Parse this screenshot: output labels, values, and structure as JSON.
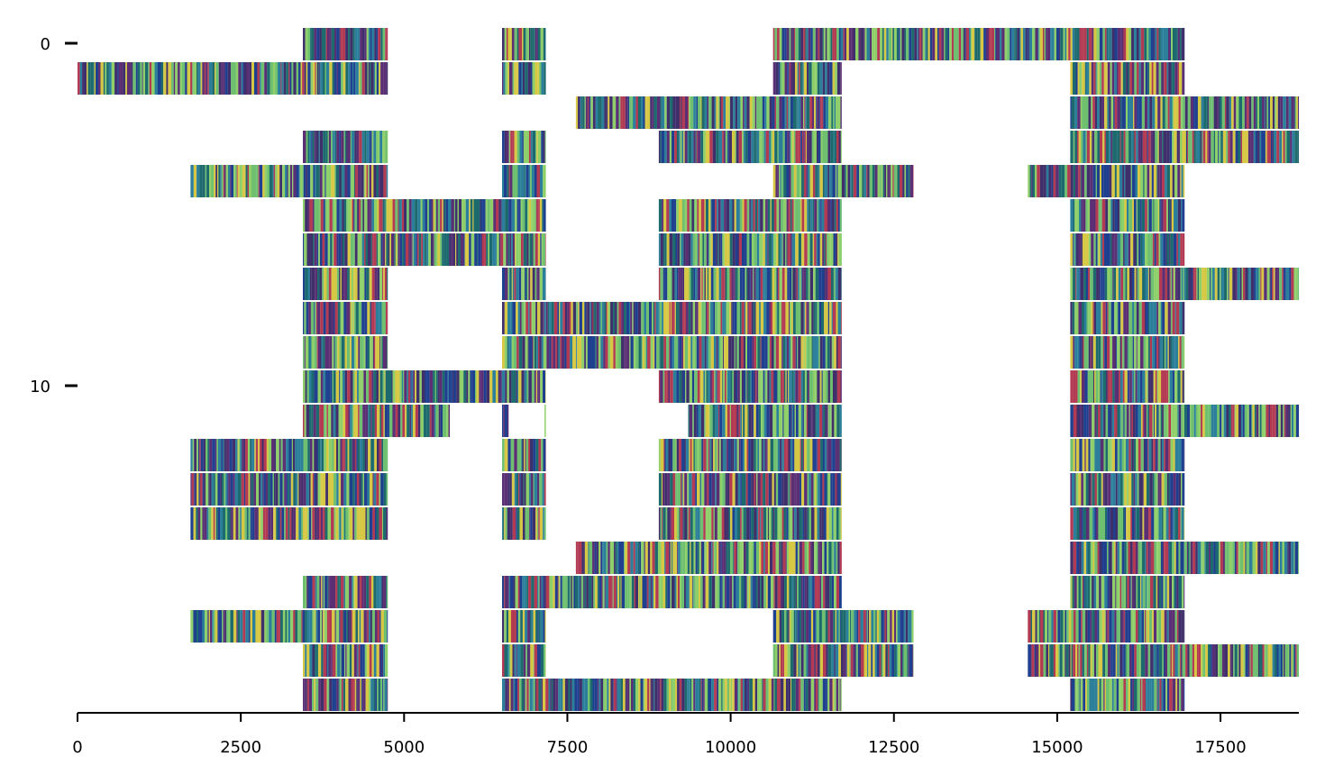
{
  "chart_data": {
    "type": "heatmap",
    "title": "",
    "xlabel": "",
    "ylabel": "",
    "xlim": [
      0,
      18700
    ],
    "ylim": [
      19.5,
      -0.5
    ],
    "x_ticks": [
      0,
      2500,
      5000,
      7500,
      10000,
      12500,
      15000,
      17500
    ],
    "x_tick_labels": [
      "0",
      "2500",
      "5000",
      "7500",
      "10000",
      "12500",
      "15000",
      "17500"
    ],
    "y_ticks": [
      0,
      10
    ],
    "y_tick_labels": [
      "0",
      "10"
    ],
    "grid": false,
    "legend": "none",
    "colors": [
      "#2c7f9a",
      "#1f3f8f",
      "#3f2f6a",
      "#5a2f74",
      "#b23a52",
      "#d6c844",
      "#6ebf6f",
      "#1d6a6e",
      "#8fcf6a"
    ],
    "rows": [
      {
        "index": 0,
        "segments": [
          [
            3450,
            4750
          ],
          [
            6500,
            7170
          ],
          [
            10650,
            16950
          ]
        ]
      },
      {
        "index": 1,
        "segments": [
          [
            0,
            4750
          ],
          [
            6500,
            7170
          ],
          [
            10650,
            11700
          ],
          [
            15200,
            16950
          ]
        ]
      },
      {
        "index": 2,
        "segments": [
          [
            7630,
            11700
          ],
          [
            15200,
            18700
          ]
        ]
      },
      {
        "index": 3,
        "segments": [
          [
            3450,
            4750
          ],
          [
            6500,
            7170
          ],
          [
            8900,
            11700
          ],
          [
            15200,
            18700
          ]
        ]
      },
      {
        "index": 4,
        "segments": [
          [
            1730,
            4750
          ],
          [
            6500,
            7170
          ],
          [
            10650,
            12800
          ],
          [
            14550,
            16950
          ]
        ]
      },
      {
        "index": 5,
        "segments": [
          [
            3450,
            7170
          ],
          [
            8900,
            11700
          ],
          [
            15200,
            16950
          ]
        ]
      },
      {
        "index": 6,
        "segments": [
          [
            3450,
            7170
          ],
          [
            8900,
            11700
          ],
          [
            15200,
            16950
          ]
        ]
      },
      {
        "index": 7,
        "segments": [
          [
            3450,
            4750
          ],
          [
            6500,
            7170
          ],
          [
            8900,
            11700
          ],
          [
            15200,
            18700
          ]
        ]
      },
      {
        "index": 8,
        "segments": [
          [
            3450,
            4750
          ],
          [
            6500,
            11700
          ],
          [
            15200,
            16950
          ]
        ]
      },
      {
        "index": 9,
        "segments": [
          [
            3450,
            4750
          ],
          [
            6500,
            11700
          ],
          [
            15200,
            16950
          ]
        ]
      },
      {
        "index": 10,
        "segments": [
          [
            3450,
            7170
          ],
          [
            8900,
            11700
          ],
          [
            15200,
            16950
          ]
        ]
      },
      {
        "index": 11,
        "segments": [
          [
            3450,
            5700
          ],
          [
            6500,
            6600
          ],
          [
            7150,
            7170
          ],
          [
            9350,
            11700
          ],
          [
            15200,
            18700
          ]
        ]
      },
      {
        "index": 12,
        "segments": [
          [
            1730,
            4750
          ],
          [
            6500,
            7170
          ],
          [
            8900,
            11700
          ],
          [
            15200,
            16950
          ]
        ]
      },
      {
        "index": 13,
        "segments": [
          [
            1730,
            4750
          ],
          [
            6500,
            7170
          ],
          [
            8900,
            11700
          ],
          [
            15200,
            16950
          ]
        ]
      },
      {
        "index": 14,
        "segments": [
          [
            1730,
            4750
          ],
          [
            6500,
            7170
          ],
          [
            8900,
            11700
          ],
          [
            15200,
            16950
          ]
        ]
      },
      {
        "index": 15,
        "segments": [
          [
            7630,
            11700
          ],
          [
            15200,
            18700
          ]
        ]
      },
      {
        "index": 16,
        "segments": [
          [
            3450,
            4750
          ],
          [
            6500,
            11700
          ],
          [
            15200,
            16950
          ]
        ]
      },
      {
        "index": 17,
        "segments": [
          [
            1730,
            4750
          ],
          [
            6500,
            7170
          ],
          [
            10650,
            12800
          ],
          [
            14550,
            16950
          ]
        ]
      },
      {
        "index": 18,
        "segments": [
          [
            3450,
            4750
          ],
          [
            6500,
            7170
          ],
          [
            10650,
            12800
          ],
          [
            14550,
            18700
          ]
        ]
      },
      {
        "index": 19,
        "segments": [
          [
            3450,
            4750
          ],
          [
            6500,
            11700
          ],
          [
            15200,
            16950
          ]
        ]
      }
    ]
  }
}
